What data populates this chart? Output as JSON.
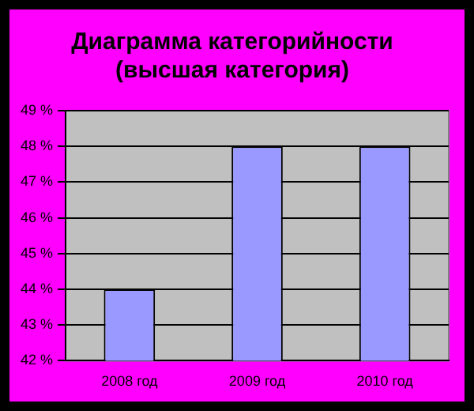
{
  "chart_data": {
    "type": "bar",
    "title": "Диаграмма категорийности\n(высшая категория)",
    "categories": [
      "2008 год",
      "2009 год",
      "2010 год"
    ],
    "values": [
      44,
      48,
      48
    ],
    "color": "#9999ff",
    "ylim": [
      42,
      49
    ],
    "yticks": [
      {
        "value": 42,
        "label": "42 %"
      },
      {
        "value": 43,
        "label": "43 %"
      },
      {
        "value": 44,
        "label": "44 %"
      },
      {
        "value": 45,
        "label": "45 %"
      },
      {
        "value": 46,
        "label": "46 %"
      },
      {
        "value": 47,
        "label": "47 %"
      },
      {
        "value": 48,
        "label": "48 %"
      },
      {
        "value": 49,
        "label": "49 %"
      }
    ],
    "grid": "y",
    "legend": false
  }
}
